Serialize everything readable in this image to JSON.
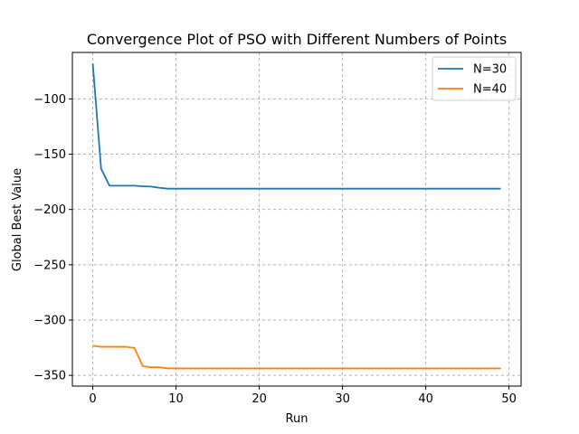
{
  "chart_data": {
    "type": "line",
    "title": "Convergence Plot of PSO with Different Numbers of Points",
    "xlabel": "Run",
    "ylabel": "Global Best Value",
    "xlim": [
      -2.45,
      51.45
    ],
    "ylim": [
      -359.7,
      -58.0
    ],
    "xticks": [
      0,
      10,
      20,
      30,
      40,
      50
    ],
    "xtick_labels": [
      "0",
      "10",
      "20",
      "30",
      "40",
      "50"
    ],
    "yticks": [
      -100,
      -150,
      -200,
      -250,
      -300,
      -350
    ],
    "ytick_labels": [
      "−100",
      "−150",
      "−200",
      "−250",
      "−300",
      "−350"
    ],
    "grid": true,
    "legend_position": "top-right",
    "series": [
      {
        "name": "N=30",
        "color": "#1f77b4",
        "x": [
          0,
          1,
          2,
          3,
          4,
          5,
          6,
          7,
          8,
          9,
          10,
          11,
          12,
          13,
          14,
          15,
          16,
          17,
          18,
          19,
          20,
          21,
          22,
          23,
          24,
          25,
          26,
          27,
          28,
          29,
          30,
          31,
          32,
          33,
          34,
          35,
          36,
          37,
          38,
          39,
          40,
          41,
          42,
          43,
          44,
          45,
          46,
          47,
          48,
          49
        ],
        "values": [
          -68,
          -163,
          -178.5,
          -178.5,
          -178.5,
          -178.5,
          -179,
          -179.3,
          -180.4,
          -181.2,
          -181.2,
          -181.2,
          -181.2,
          -181.2,
          -181.2,
          -181.2,
          -181.2,
          -181.2,
          -181.2,
          -181.2,
          -181.2,
          -181.2,
          -181.2,
          -181.2,
          -181.2,
          -181.2,
          -181.2,
          -181.2,
          -181.2,
          -181.2,
          -181.2,
          -181.2,
          -181.2,
          -181.2,
          -181.2,
          -181.2,
          -181.2,
          -181.2,
          -181.2,
          -181.2,
          -181.2,
          -181.2,
          -181.2,
          -181.2,
          -181.2,
          -181.2,
          -181.2,
          -181.2,
          -181.2,
          -181.2
        ]
      },
      {
        "name": "N=40",
        "color": "#ff7f0e",
        "x": [
          0,
          1,
          2,
          3,
          4,
          5,
          6,
          7,
          8,
          9,
          10,
          11,
          12,
          13,
          14,
          15,
          16,
          17,
          18,
          19,
          20,
          21,
          22,
          23,
          24,
          25,
          26,
          27,
          28,
          29,
          30,
          31,
          32,
          33,
          34,
          35,
          36,
          37,
          38,
          39,
          40,
          41,
          42,
          43,
          44,
          45,
          46,
          47,
          48,
          49
        ],
        "values": [
          -323.2,
          -324.2,
          -324.2,
          -324.2,
          -324.2,
          -325.2,
          -341.7,
          -342.7,
          -342.7,
          -343.7,
          -343.7,
          -343.7,
          -343.7,
          -343.7,
          -343.7,
          -343.7,
          -343.7,
          -343.7,
          -343.7,
          -343.7,
          -343.7,
          -343.7,
          -343.7,
          -343.7,
          -343.7,
          -343.7,
          -343.7,
          -343.7,
          -343.7,
          -343.7,
          -343.7,
          -343.7,
          -343.7,
          -343.7,
          -343.7,
          -343.7,
          -343.7,
          -343.7,
          -343.7,
          -343.7,
          -343.7,
          -343.7,
          -343.7,
          -343.7,
          -343.7,
          -343.7,
          -343.7,
          -343.7,
          -343.7,
          -343.7
        ]
      }
    ]
  }
}
